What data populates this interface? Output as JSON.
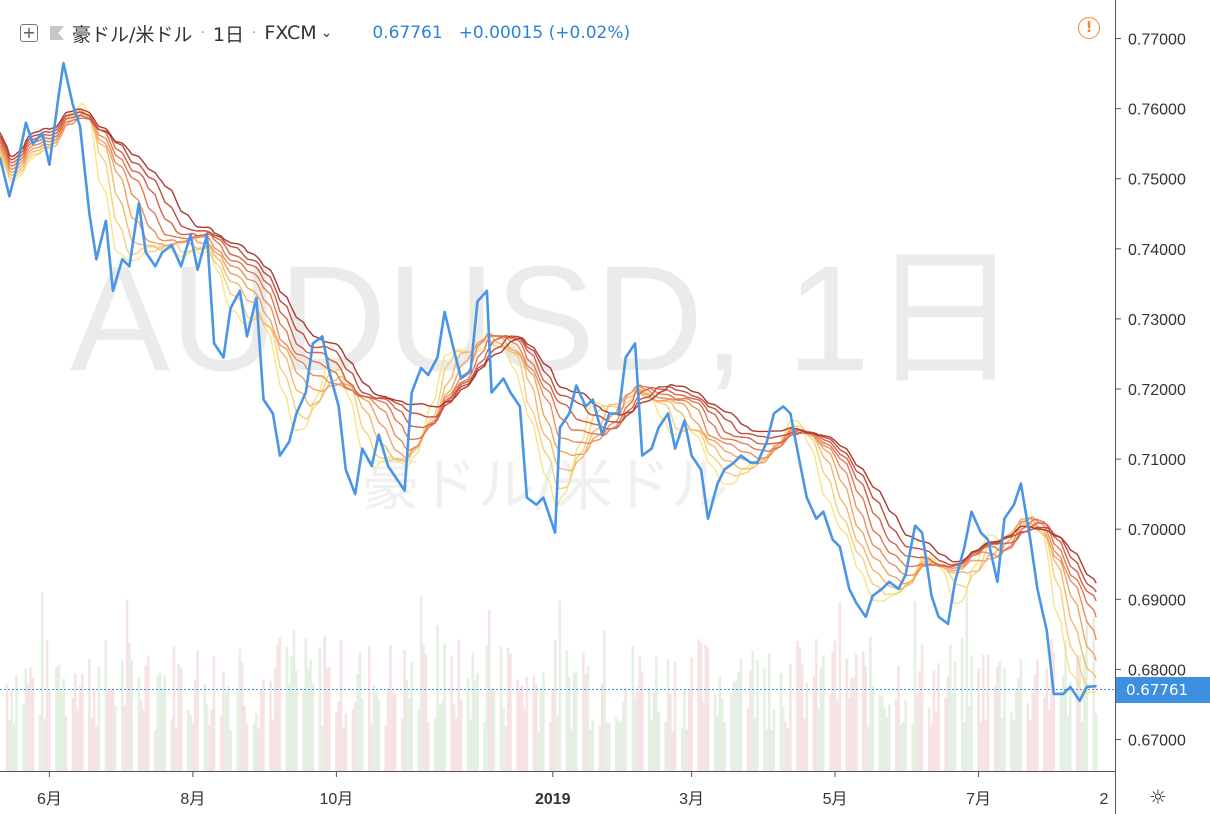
{
  "header": {
    "symbol_name": "豪ドル/米ドル",
    "interval": "1日",
    "exchange": "FXCM",
    "last_price": "0.67761",
    "change": "+0.00015 (+0.02%)"
  },
  "watermark": {
    "line1": "AUDUSD, 1日",
    "line2": "豪ドル/米ドル"
  },
  "price_badge": "0.67761",
  "colors": {
    "price_line": "#4a95e6",
    "ribbon": [
      "#f7e48a",
      "#f5cf7a",
      "#f3ba6e",
      "#efa466",
      "#ea8e5c",
      "#e27752",
      "#d5614a",
      "#c24d3e",
      "#a83a31"
    ],
    "volume_up": "#e4f0e2",
    "volume_down": "#f6e4e4",
    "accent_alert": "#f0883a",
    "badge": "#3d8fe0"
  },
  "chart_data": {
    "type": "line",
    "title": "豪ドル/米ドル · 1日 · FXCM",
    "x_tick_labels": [
      "6月",
      "8月",
      "10月",
      "2019",
      "3月",
      "5月",
      "7月",
      "2"
    ],
    "y_tick_labels": [
      "0.77000",
      "0.76000",
      "0.75000",
      "0.74000",
      "0.73000",
      "0.72000",
      "0.71000",
      "0.70000",
      "0.69000",
      "0.68000",
      "0.67000"
    ],
    "ylim": [
      0.6655,
      0.7755
    ],
    "xlim": [
      "2018-05-11",
      "2019-08-28"
    ],
    "last_value": 0.67761,
    "series": [
      {
        "values": [
          [
            "2018-05-11",
            0.753
          ],
          [
            "2018-05-15",
            0.7475
          ],
          [
            "2018-05-18",
            0.7515
          ],
          [
            "2018-05-22",
            0.758
          ],
          [
            "2018-05-25",
            0.755
          ],
          [
            "2018-05-29",
            0.7565
          ],
          [
            "2018-06-01",
            0.752
          ],
          [
            "2018-06-05",
            0.762
          ],
          [
            "2018-06-07",
            0.7665
          ],
          [
            "2018-06-11",
            0.7605
          ],
          [
            "2018-06-14",
            0.7575
          ],
          [
            "2018-06-18",
            0.745
          ],
          [
            "2018-06-21",
            0.7385
          ],
          [
            "2018-06-25",
            0.744
          ],
          [
            "2018-06-28",
            0.734
          ],
          [
            "2018-07-02",
            0.7385
          ],
          [
            "2018-07-05",
            0.7375
          ],
          [
            "2018-07-09",
            0.7465
          ],
          [
            "2018-07-12",
            0.7395
          ],
          [
            "2018-07-16",
            0.7375
          ],
          [
            "2018-07-19",
            0.7395
          ],
          [
            "2018-07-23",
            0.7405
          ],
          [
            "2018-07-27",
            0.7375
          ],
          [
            "2018-07-31",
            0.742
          ],
          [
            "2018-08-03",
            0.737
          ],
          [
            "2018-08-07",
            0.742
          ],
          [
            "2018-08-10",
            0.7265
          ],
          [
            "2018-08-14",
            0.7245
          ],
          [
            "2018-08-17",
            0.7315
          ],
          [
            "2018-08-21",
            0.734
          ],
          [
            "2018-08-24",
            0.7275
          ],
          [
            "2018-08-28",
            0.733
          ],
          [
            "2018-08-31",
            0.7185
          ],
          [
            "2018-09-04",
            0.7165
          ],
          [
            "2018-09-07",
            0.7105
          ],
          [
            "2018-09-11",
            0.7125
          ],
          [
            "2018-09-14",
            0.7165
          ],
          [
            "2018-09-18",
            0.7195
          ],
          [
            "2018-09-21",
            0.7265
          ],
          [
            "2018-09-25",
            0.7275
          ],
          [
            "2018-09-28",
            0.7225
          ],
          [
            "2018-10-02",
            0.7175
          ],
          [
            "2018-10-05",
            0.7085
          ],
          [
            "2018-10-09",
            0.705
          ],
          [
            "2018-10-12",
            0.7115
          ],
          [
            "2018-10-16",
            0.709
          ],
          [
            "2018-10-19",
            0.7135
          ],
          [
            "2018-10-23",
            0.709
          ],
          [
            "2018-10-26",
            0.7075
          ],
          [
            "2018-10-30",
            0.7055
          ],
          [
            "2018-11-02",
            0.7195
          ],
          [
            "2018-11-06",
            0.723
          ],
          [
            "2018-11-09",
            0.722
          ],
          [
            "2018-11-13",
            0.7245
          ],
          [
            "2018-11-16",
            0.731
          ],
          [
            "2018-11-20",
            0.7255
          ],
          [
            "2018-11-23",
            0.7215
          ],
          [
            "2018-11-27",
            0.7225
          ],
          [
            "2018-11-30",
            0.7325
          ],
          [
            "2018-12-04",
            0.734
          ],
          [
            "2018-12-06",
            0.7195
          ],
          [
            "2018-12-11",
            0.7215
          ],
          [
            "2018-12-14",
            0.7195
          ],
          [
            "2018-12-18",
            0.7175
          ],
          [
            "2018-12-21",
            0.7045
          ],
          [
            "2018-12-25",
            0.7035
          ],
          [
            "2018-12-28",
            0.7045
          ],
          [
            "2019-01-02",
            0.6995
          ],
          [
            "2019-01-04",
            0.7145
          ],
          [
            "2019-01-08",
            0.7165
          ],
          [
            "2019-01-11",
            0.7205
          ],
          [
            "2019-01-15",
            0.7175
          ],
          [
            "2019-01-18",
            0.7185
          ],
          [
            "2019-01-22",
            0.7135
          ],
          [
            "2019-01-25",
            0.7165
          ],
          [
            "2019-01-29",
            0.7165
          ],
          [
            "2019-02-01",
            0.7245
          ],
          [
            "2019-02-05",
            0.7265
          ],
          [
            "2019-02-08",
            0.7105
          ],
          [
            "2019-02-12",
            0.7115
          ],
          [
            "2019-02-15",
            0.7145
          ],
          [
            "2019-02-19",
            0.7165
          ],
          [
            "2019-02-22",
            0.7115
          ],
          [
            "2019-02-26",
            0.7155
          ],
          [
            "2019-03-01",
            0.7105
          ],
          [
            "2019-03-05",
            0.7085
          ],
          [
            "2019-03-08",
            0.7015
          ],
          [
            "2019-03-12",
            0.7065
          ],
          [
            "2019-03-15",
            0.7085
          ],
          [
            "2019-03-19",
            0.7095
          ],
          [
            "2019-03-22",
            0.7105
          ],
          [
            "2019-03-26",
            0.7095
          ],
          [
            "2019-03-29",
            0.7095
          ],
          [
            "2019-04-02",
            0.7125
          ],
          [
            "2019-04-05",
            0.7165
          ],
          [
            "2019-04-09",
            0.7175
          ],
          [
            "2019-04-12",
            0.7165
          ],
          [
            "2019-04-16",
            0.7095
          ],
          [
            "2019-04-19",
            0.7045
          ],
          [
            "2019-04-23",
            0.7015
          ],
          [
            "2019-04-26",
            0.7025
          ],
          [
            "2019-04-30",
            0.6985
          ],
          [
            "2019-05-03",
            0.6975
          ],
          [
            "2019-05-07",
            0.6915
          ],
          [
            "2019-05-10",
            0.6895
          ],
          [
            "2019-05-14",
            0.6875
          ],
          [
            "2019-05-17",
            0.6905
          ],
          [
            "2019-05-21",
            0.6915
          ],
          [
            "2019-05-24",
            0.6925
          ],
          [
            "2019-05-28",
            0.6915
          ],
          [
            "2019-05-31",
            0.6935
          ],
          [
            "2019-06-04",
            0.7005
          ],
          [
            "2019-06-07",
            0.6995
          ],
          [
            "2019-06-11",
            0.6905
          ],
          [
            "2019-06-14",
            0.6875
          ],
          [
            "2019-06-18",
            0.6865
          ],
          [
            "2019-06-21",
            0.6925
          ],
          [
            "2019-06-25",
            0.6975
          ],
          [
            "2019-06-28",
            0.7025
          ],
          [
            "2019-07-02",
            0.6995
          ],
          [
            "2019-07-05",
            0.6985
          ],
          [
            "2019-07-09",
            0.6925
          ],
          [
            "2019-07-12",
            0.7015
          ],
          [
            "2019-07-16",
            0.7035
          ],
          [
            "2019-07-19",
            0.7065
          ],
          [
            "2019-07-23",
            0.6985
          ],
          [
            "2019-07-26",
            0.6915
          ],
          [
            "2019-07-30",
            0.6855
          ],
          [
            "2019-08-02",
            0.6765
          ],
          [
            "2019-08-06",
            0.6765
          ],
          [
            "2019-08-09",
            0.6775
          ],
          [
            "2019-08-13",
            0.6755
          ],
          [
            "2019-08-16",
            0.6775
          ],
          [
            "2019-08-20",
            0.67761
          ]
        ]
      }
    ]
  }
}
